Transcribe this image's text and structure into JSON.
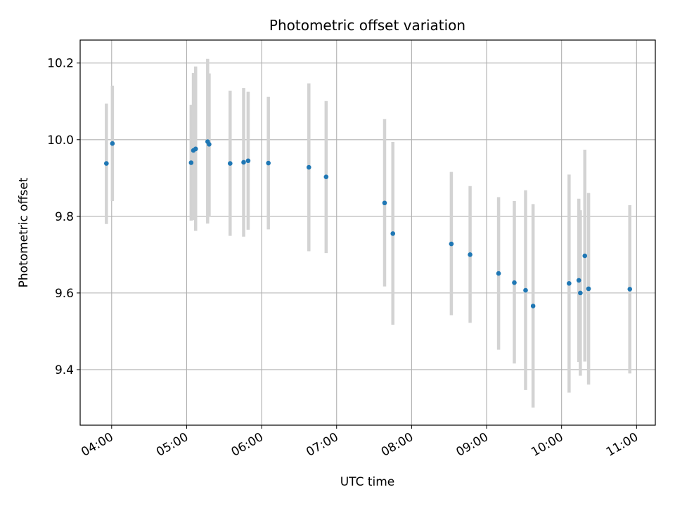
{
  "chart_data": {
    "type": "scatter",
    "title": "Photometric offset variation",
    "xlabel": "UTC time",
    "ylabel": "Photometric offset",
    "x_unit": "hours UTC",
    "xlim": [
      3.58,
      11.25
    ],
    "ylim": [
      9.255,
      10.26
    ],
    "x_ticks": [
      {
        "value": 4,
        "label": "04:00"
      },
      {
        "value": 5,
        "label": "05:00"
      },
      {
        "value": 6,
        "label": "06:00"
      },
      {
        "value": 7,
        "label": "07:00"
      },
      {
        "value": 8,
        "label": "08:00"
      },
      {
        "value": 9,
        "label": "09:00"
      },
      {
        "value": 10,
        "label": "10:00"
      },
      {
        "value": 11,
        "label": "11:00"
      }
    ],
    "y_ticks": [
      {
        "value": 9.4,
        "label": "9.4"
      },
      {
        "value": 9.6,
        "label": "9.6"
      },
      {
        "value": 9.8,
        "label": "9.8"
      },
      {
        "value": 10.0,
        "label": "10.0"
      },
      {
        "value": 10.2,
        "label": "10.2"
      }
    ],
    "grid": true,
    "colors": {
      "point": "#1f77b4",
      "errorbar": "#d3d3d3",
      "grid": "#b0b0b0"
    },
    "points": [
      {
        "x": 3.93,
        "y": 9.938,
        "err_low": 9.78,
        "err_high": 10.094
      },
      {
        "x": 4.01,
        "y": 9.99,
        "err_low": 9.84,
        "err_high": 10.141
      },
      {
        "x": 5.06,
        "y": 9.94,
        "err_low": 9.789,
        "err_high": 10.091
      },
      {
        "x": 5.09,
        "y": 9.972,
        "err_low": 9.79,
        "err_high": 10.174
      },
      {
        "x": 5.12,
        "y": 9.976,
        "err_low": 9.762,
        "err_high": 10.191
      },
      {
        "x": 5.28,
        "y": 9.995,
        "err_low": 9.781,
        "err_high": 10.211
      },
      {
        "x": 5.3,
        "y": 9.988,
        "err_low": 9.8,
        "err_high": 10.173
      },
      {
        "x": 5.58,
        "y": 9.938,
        "err_low": 9.749,
        "err_high": 10.128
      },
      {
        "x": 5.76,
        "y": 9.941,
        "err_low": 9.747,
        "err_high": 10.135
      },
      {
        "x": 5.82,
        "y": 9.945,
        "err_low": 9.765,
        "err_high": 10.125
      },
      {
        "x": 6.09,
        "y": 9.939,
        "err_low": 9.766,
        "err_high": 10.112
      },
      {
        "x": 6.63,
        "y": 9.928,
        "err_low": 9.709,
        "err_high": 10.147
      },
      {
        "x": 6.86,
        "y": 9.903,
        "err_low": 9.704,
        "err_high": 10.101
      },
      {
        "x": 7.64,
        "y": 9.835,
        "err_low": 9.617,
        "err_high": 10.054
      },
      {
        "x": 7.75,
        "y": 9.755,
        "err_low": 9.517,
        "err_high": 9.994
      },
      {
        "x": 8.53,
        "y": 9.728,
        "err_low": 9.542,
        "err_high": 9.916
      },
      {
        "x": 8.78,
        "y": 9.7,
        "err_low": 9.522,
        "err_high": 9.879
      },
      {
        "x": 9.16,
        "y": 9.651,
        "err_low": 9.452,
        "err_high": 9.85
      },
      {
        "x": 9.37,
        "y": 9.627,
        "err_low": 9.416,
        "err_high": 9.84
      },
      {
        "x": 9.52,
        "y": 9.607,
        "err_low": 9.347,
        "err_high": 9.868
      },
      {
        "x": 9.62,
        "y": 9.566,
        "err_low": 9.301,
        "err_high": 9.832
      },
      {
        "x": 10.1,
        "y": 9.625,
        "err_low": 9.34,
        "err_high": 9.909
      },
      {
        "x": 10.23,
        "y": 9.633,
        "err_low": 9.42,
        "err_high": 9.846
      },
      {
        "x": 10.25,
        "y": 9.6,
        "err_low": 9.384,
        "err_high": 9.816
      },
      {
        "x": 10.31,
        "y": 9.697,
        "err_low": 9.421,
        "err_high": 9.974
      },
      {
        "x": 10.36,
        "y": 9.611,
        "err_low": 9.361,
        "err_high": 9.861
      },
      {
        "x": 10.91,
        "y": 9.61,
        "err_low": 9.39,
        "err_high": 9.829
      }
    ]
  }
}
